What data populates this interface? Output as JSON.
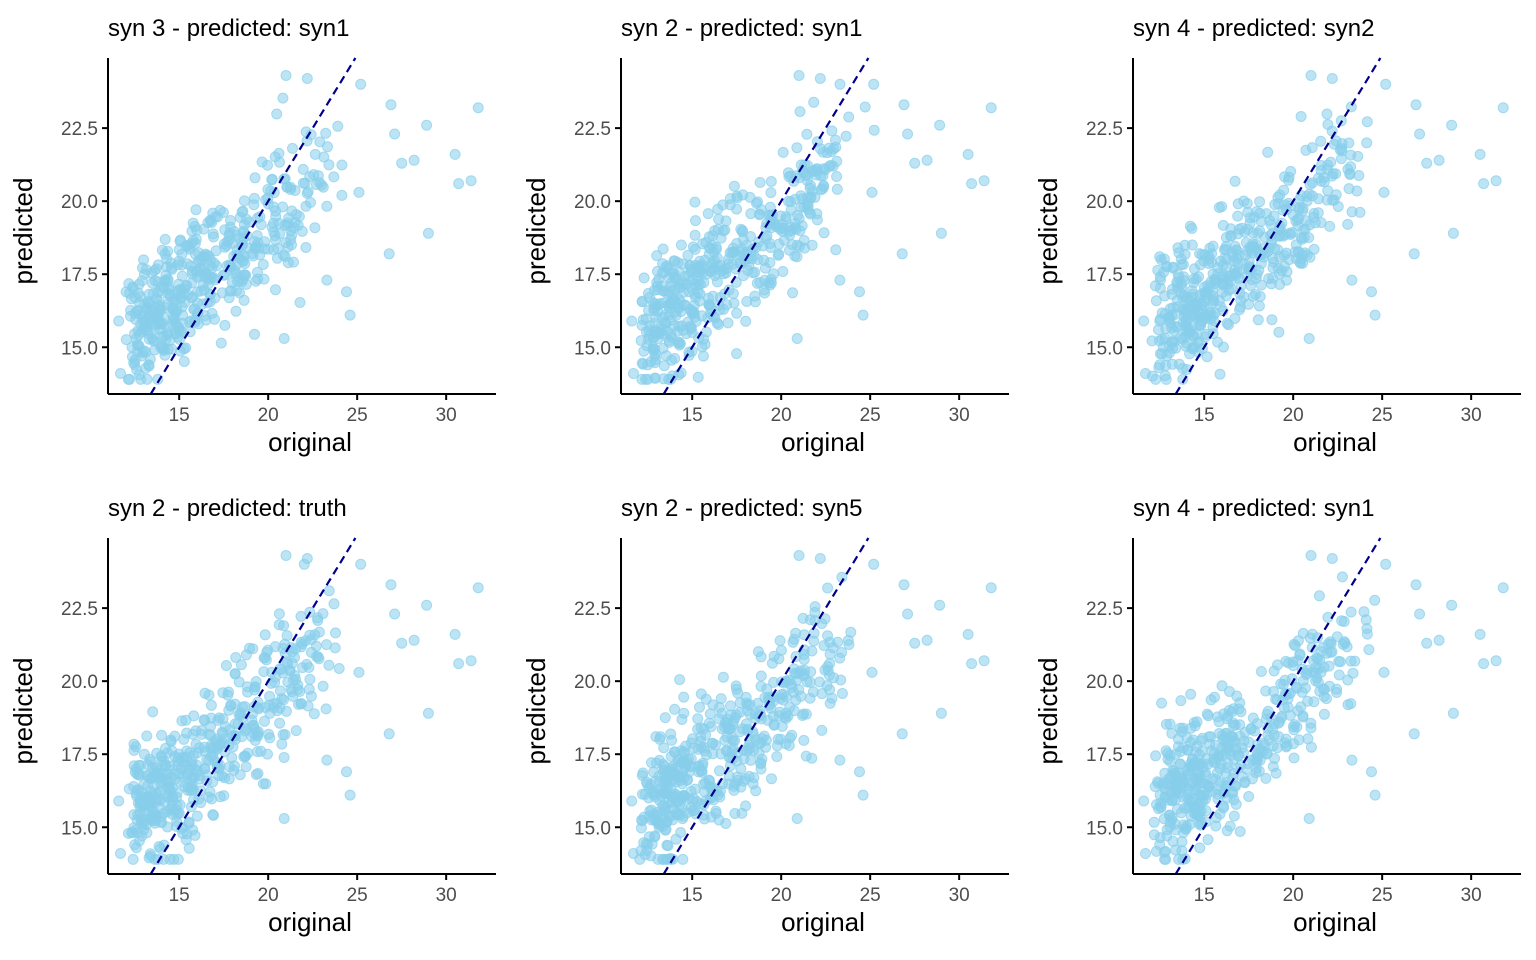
{
  "colors": {
    "point": "#87ceeb",
    "identity_line": "#00008b",
    "axis": "#000000",
    "tick_label": "#4d4d4d"
  },
  "chart_data": [
    {
      "type": "scatter",
      "title": "syn 3 - predicted: syn1",
      "xlabel": "original",
      "ylabel": "predicted",
      "xlim": [
        11,
        32.8
      ],
      "ylim": [
        13.4,
        24.9
      ],
      "xticks": [
        15,
        20,
        25,
        30
      ],
      "yticks": [
        15.0,
        17.5,
        20.0,
        22.5
      ],
      "grid": false,
      "reference_line": "y = x (dashed)",
      "points_seed": 11
    },
    {
      "type": "scatter",
      "title": "syn 2 - predicted: syn1",
      "xlabel": "original",
      "ylabel": "predicted",
      "xlim": [
        11,
        32.8
      ],
      "ylim": [
        13.4,
        24.9
      ],
      "xticks": [
        15,
        20,
        25,
        30
      ],
      "yticks": [
        15.0,
        17.5,
        20.0,
        22.5
      ],
      "grid": false,
      "reference_line": "y = x (dashed)",
      "points_seed": 23
    },
    {
      "type": "scatter",
      "title": "syn 4 - predicted: syn2",
      "xlabel": "original",
      "ylabel": "predicted",
      "xlim": [
        11,
        32.8
      ],
      "ylim": [
        13.4,
        24.9
      ],
      "xticks": [
        15,
        20,
        25,
        30
      ],
      "yticks": [
        15.0,
        17.5,
        20.0,
        22.5
      ],
      "grid": false,
      "reference_line": "y = x (dashed)",
      "points_seed": 37
    },
    {
      "type": "scatter",
      "title": "syn 2 - predicted: truth",
      "xlabel": "original",
      "ylabel": "predicted",
      "xlim": [
        11,
        32.8
      ],
      "ylim": [
        13.4,
        24.9
      ],
      "xticks": [
        15,
        20,
        25,
        30
      ],
      "yticks": [
        15.0,
        17.5,
        20.0,
        22.5
      ],
      "grid": false,
      "reference_line": "y = x (dashed)",
      "points_seed": 41
    },
    {
      "type": "scatter",
      "title": "syn 2 - predicted: syn5",
      "xlabel": "original",
      "ylabel": "predicted",
      "xlim": [
        11,
        32.8
      ],
      "ylim": [
        13.4,
        24.9
      ],
      "xticks": [
        15,
        20,
        25,
        30
      ],
      "yticks": [
        15.0,
        17.5,
        20.0,
        22.5
      ],
      "grid": false,
      "reference_line": "y = x (dashed)",
      "points_seed": 53
    },
    {
      "type": "scatter",
      "title": "syn 4 - predicted: syn1",
      "xlabel": "original",
      "ylabel": "predicted",
      "xlim": [
        11,
        32.8
      ],
      "ylim": [
        13.4,
        24.9
      ],
      "xticks": [
        15,
        20,
        25,
        30
      ],
      "yticks": [
        15.0,
        17.5,
        20.0,
        22.5
      ],
      "grid": false,
      "reference_line": "y = x (dashed)",
      "points_seed": 67
    }
  ]
}
